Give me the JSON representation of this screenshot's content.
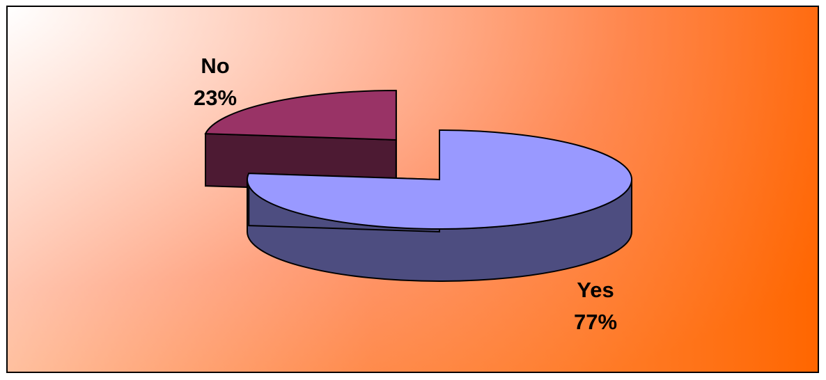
{
  "chart_data": {
    "type": "pie",
    "style": "3d-exploded",
    "slices": [
      {
        "label": "Yes",
        "value": 77,
        "display": "77%",
        "top_color": "#9999ff",
        "side_color": "#4d4d80"
      },
      {
        "label": "No",
        "value": 23,
        "display": "23%",
        "top_color": "#993366",
        "side_color": "#4d1a33"
      }
    ],
    "exploded_slice": "No",
    "legend": "none",
    "background": {
      "type": "gradient",
      "from": "#ffffff",
      "to": "#ff6600"
    }
  }
}
